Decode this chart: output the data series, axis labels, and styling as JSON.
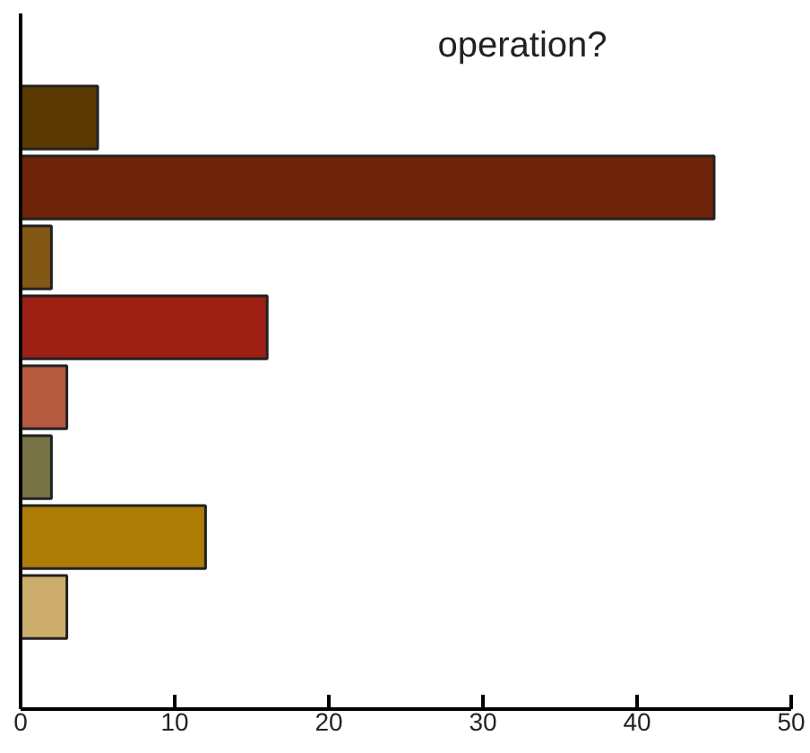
{
  "chart_data": {
    "type": "bar",
    "orientation": "horizontal",
    "title": "operation?",
    "categories": [
      null,
      null,
      null,
      null,
      null,
      null,
      null,
      null
    ],
    "values": [
      5,
      45,
      2,
      16,
      3,
      2,
      12,
      3
    ],
    "colors": [
      "#5a3a00",
      "#6e2208",
      "#835714",
      "#9e1f14",
      "#b55a3e",
      "#767346",
      "#ae7d08",
      "#ccad6c"
    ],
    "xlim": [
      0,
      50
    ],
    "xticks": [
      0,
      10,
      20,
      30,
      40,
      50
    ],
    "grid": false
  }
}
